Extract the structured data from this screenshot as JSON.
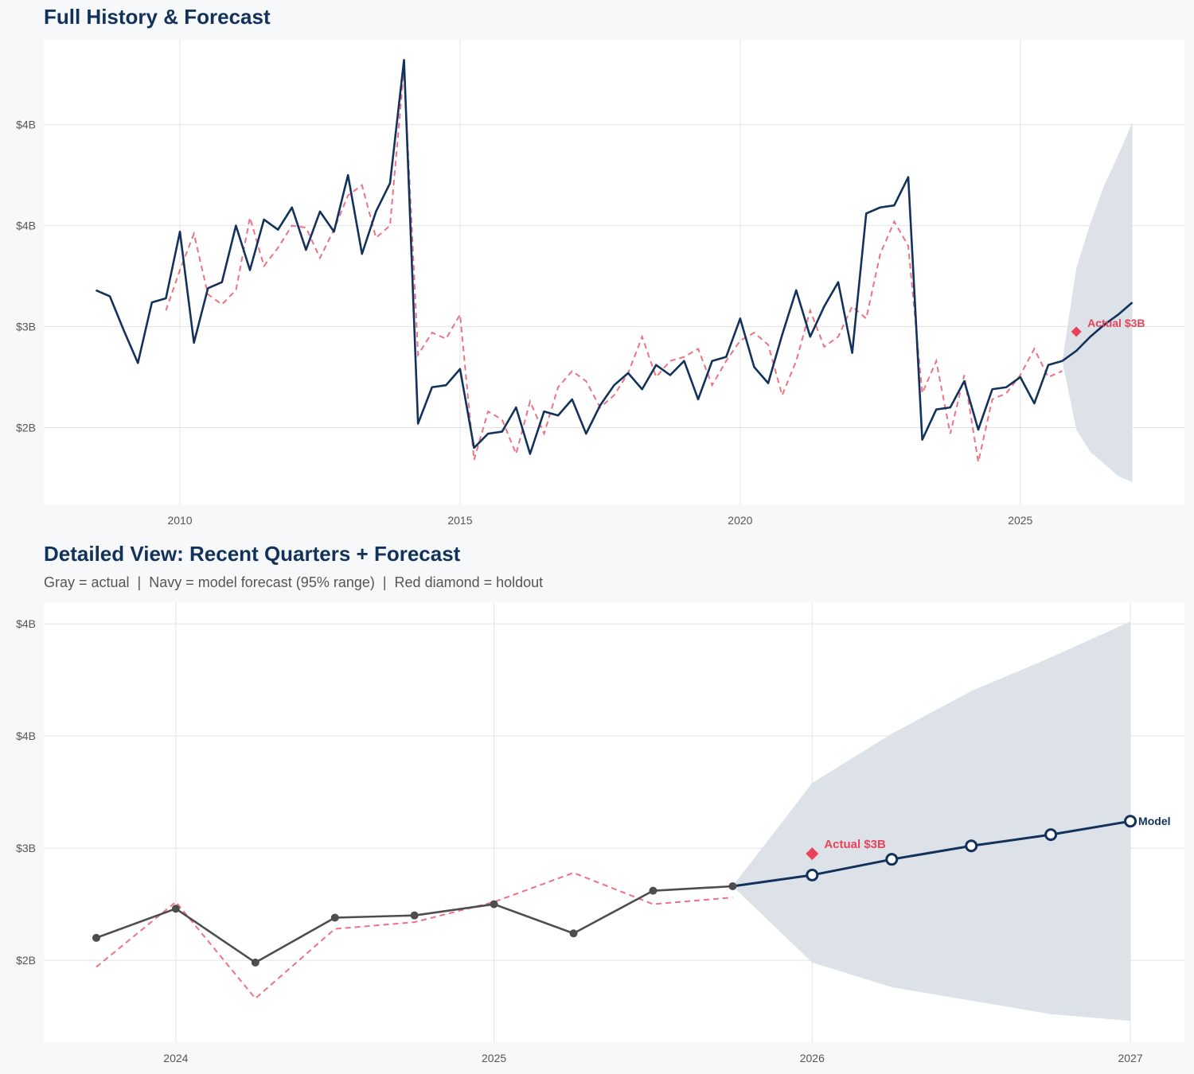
{
  "colors": {
    "navy": "#13325b",
    "red": "#e8435a",
    "gray": "#4d4d4d",
    "band": "#dbe0e7",
    "grid": "#e3e3e3"
  },
  "chart_data": [
    {
      "type": "line",
      "title": "Full History & Forecast",
      "xlim": [
        2007.57,
        2027.93
      ],
      "ylim": [
        2.12,
        4.42
      ],
      "y_ticks": [
        2.5,
        3.0,
        3.5,
        4.0
      ],
      "y_tick_labels": [
        "$2B",
        "$3B",
        "$4B",
        "$4B"
      ],
      "x_ticks": [
        2010,
        2015,
        2020,
        2025
      ],
      "x_tick_labels": [
        "2010",
        "2015",
        "2020",
        "2025"
      ],
      "grid": true,
      "x": [
        2008.5,
        2008.75,
        2009,
        2009.25,
        2009.5,
        2009.75,
        2010,
        2010.25,
        2010.5,
        2010.75,
        2011,
        2011.25,
        2011.5,
        2011.75,
        2012,
        2012.25,
        2012.5,
        2012.75,
        2013,
        2013.25,
        2013.5,
        2013.75,
        2014,
        2014.25,
        2014.5,
        2014.75,
        2015,
        2015.25,
        2015.5,
        2015.75,
        2016,
        2016.25,
        2016.5,
        2016.75,
        2017,
        2017.25,
        2017.5,
        2017.75,
        2018,
        2018.25,
        2018.5,
        2018.75,
        2019,
        2019.25,
        2019.5,
        2019.75,
        2020,
        2020.25,
        2020.5,
        2020.75,
        2021,
        2021.25,
        2021.5,
        2021.75,
        2022,
        2022.25,
        2022.5,
        2022.75,
        2023,
        2023.25,
        2023.5,
        2023.75,
        2024,
        2024.25,
        2024.5,
        2024.75,
        2025,
        2025.25,
        2025.5,
        2025.75
      ],
      "actual": [
        3.18,
        3.15,
        2.98,
        2.82,
        3.12,
        3.14,
        3.47,
        2.92,
        3.19,
        3.22,
        3.5,
        3.28,
        3.53,
        3.48,
        3.59,
        3.38,
        3.57,
        3.47,
        3.75,
        3.36,
        3.57,
        3.71,
        4.32,
        2.52,
        2.7,
        2.71,
        2.79,
        2.4,
        2.47,
        2.48,
        2.6,
        2.37,
        2.58,
        2.56,
        2.64,
        2.47,
        2.61,
        2.71,
        2.77,
        2.69,
        2.81,
        2.76,
        2.83,
        2.64,
        2.83,
        2.85,
        3.04,
        2.8,
        2.72,
        2.96,
        3.18,
        2.95,
        3.1,
        3.22,
        2.87,
        3.56,
        3.59,
        3.6,
        3.74,
        2.44,
        2.59,
        2.6,
        2.73,
        2.49,
        2.69,
        2.7,
        2.75,
        2.62,
        2.81,
        2.83
      ],
      "fitted": [
        null,
        null,
        null,
        null,
        null,
        3.08,
        3.28,
        3.46,
        3.16,
        3.11,
        3.18,
        3.54,
        3.3,
        3.39,
        3.5,
        3.49,
        3.34,
        3.48,
        3.65,
        3.7,
        3.44,
        3.5,
        4.28,
        2.86,
        2.97,
        2.94,
        3.06,
        2.34,
        2.58,
        2.54,
        2.37,
        2.63,
        2.47,
        2.7,
        2.78,
        2.73,
        2.6,
        2.66,
        2.77,
        2.95,
        2.75,
        2.83,
        2.85,
        2.89,
        2.71,
        2.83,
        2.93,
        2.97,
        2.91,
        2.66,
        2.83,
        3.08,
        2.9,
        2.95,
        3.1,
        3.04,
        3.36,
        3.52,
        3.4,
        2.67,
        2.83,
        2.47,
        2.76,
        2.33,
        2.64,
        2.67,
        2.76,
        2.89,
        2.75,
        2.78
      ],
      "forecast": {
        "x": [
          2025.75,
          2026,
          2026.25,
          2026.5,
          2026.75,
          2027
        ],
        "mean": [
          2.83,
          2.88,
          2.95,
          3.01,
          3.06,
          3.12
        ],
        "upper": [
          2.83,
          3.29,
          3.51,
          3.7,
          3.85,
          4.01
        ],
        "lower": [
          2.83,
          2.49,
          2.38,
          2.32,
          2.26,
          2.23
        ]
      },
      "holdout": {
        "x": 2026,
        "y": 2.975,
        "label": "Actual $3B"
      }
    },
    {
      "type": "line",
      "title": "Detailed View: Recent Quarters + Forecast",
      "subtitle": "Gray = actual  |  Navy = model forecast (95% range)  |  Red diamond = holdout",
      "xlim": [
        2023.585,
        2027.17
      ],
      "ylim": [
        2.135,
        4.096
      ],
      "y_ticks": [
        2.5,
        3.0,
        3.5,
        4.0
      ],
      "y_tick_labels": [
        "$2B",
        "$3B",
        "$4B",
        "$4B"
      ],
      "x_ticks": [
        2024,
        2025,
        2026,
        2027
      ],
      "x_tick_labels": [
        "2024",
        "2025",
        "2026",
        "2027"
      ],
      "grid": true,
      "x": [
        2023.75,
        2024,
        2024.25,
        2024.5,
        2024.75,
        2025,
        2025.25,
        2025.5,
        2025.75
      ],
      "actual": [
        2.6,
        2.73,
        2.49,
        2.69,
        2.7,
        2.75,
        2.62,
        2.81,
        2.83
      ],
      "fitted": [
        2.47,
        2.76,
        2.33,
        2.64,
        2.67,
        2.76,
        2.89,
        2.75,
        2.78
      ],
      "forecast": {
        "x": [
          2025.75,
          2026,
          2026.25,
          2026.5,
          2026.75,
          2027
        ],
        "mean": [
          2.83,
          2.88,
          2.95,
          3.01,
          3.06,
          3.12
        ],
        "upper": [
          2.83,
          3.29,
          3.51,
          3.7,
          3.85,
          4.01
        ],
        "lower": [
          2.83,
          2.49,
          2.38,
          2.32,
          2.26,
          2.23
        ],
        "label": "Model"
      },
      "holdout": {
        "x": 2026,
        "y": 2.975,
        "label": "Actual $3B"
      }
    }
  ]
}
